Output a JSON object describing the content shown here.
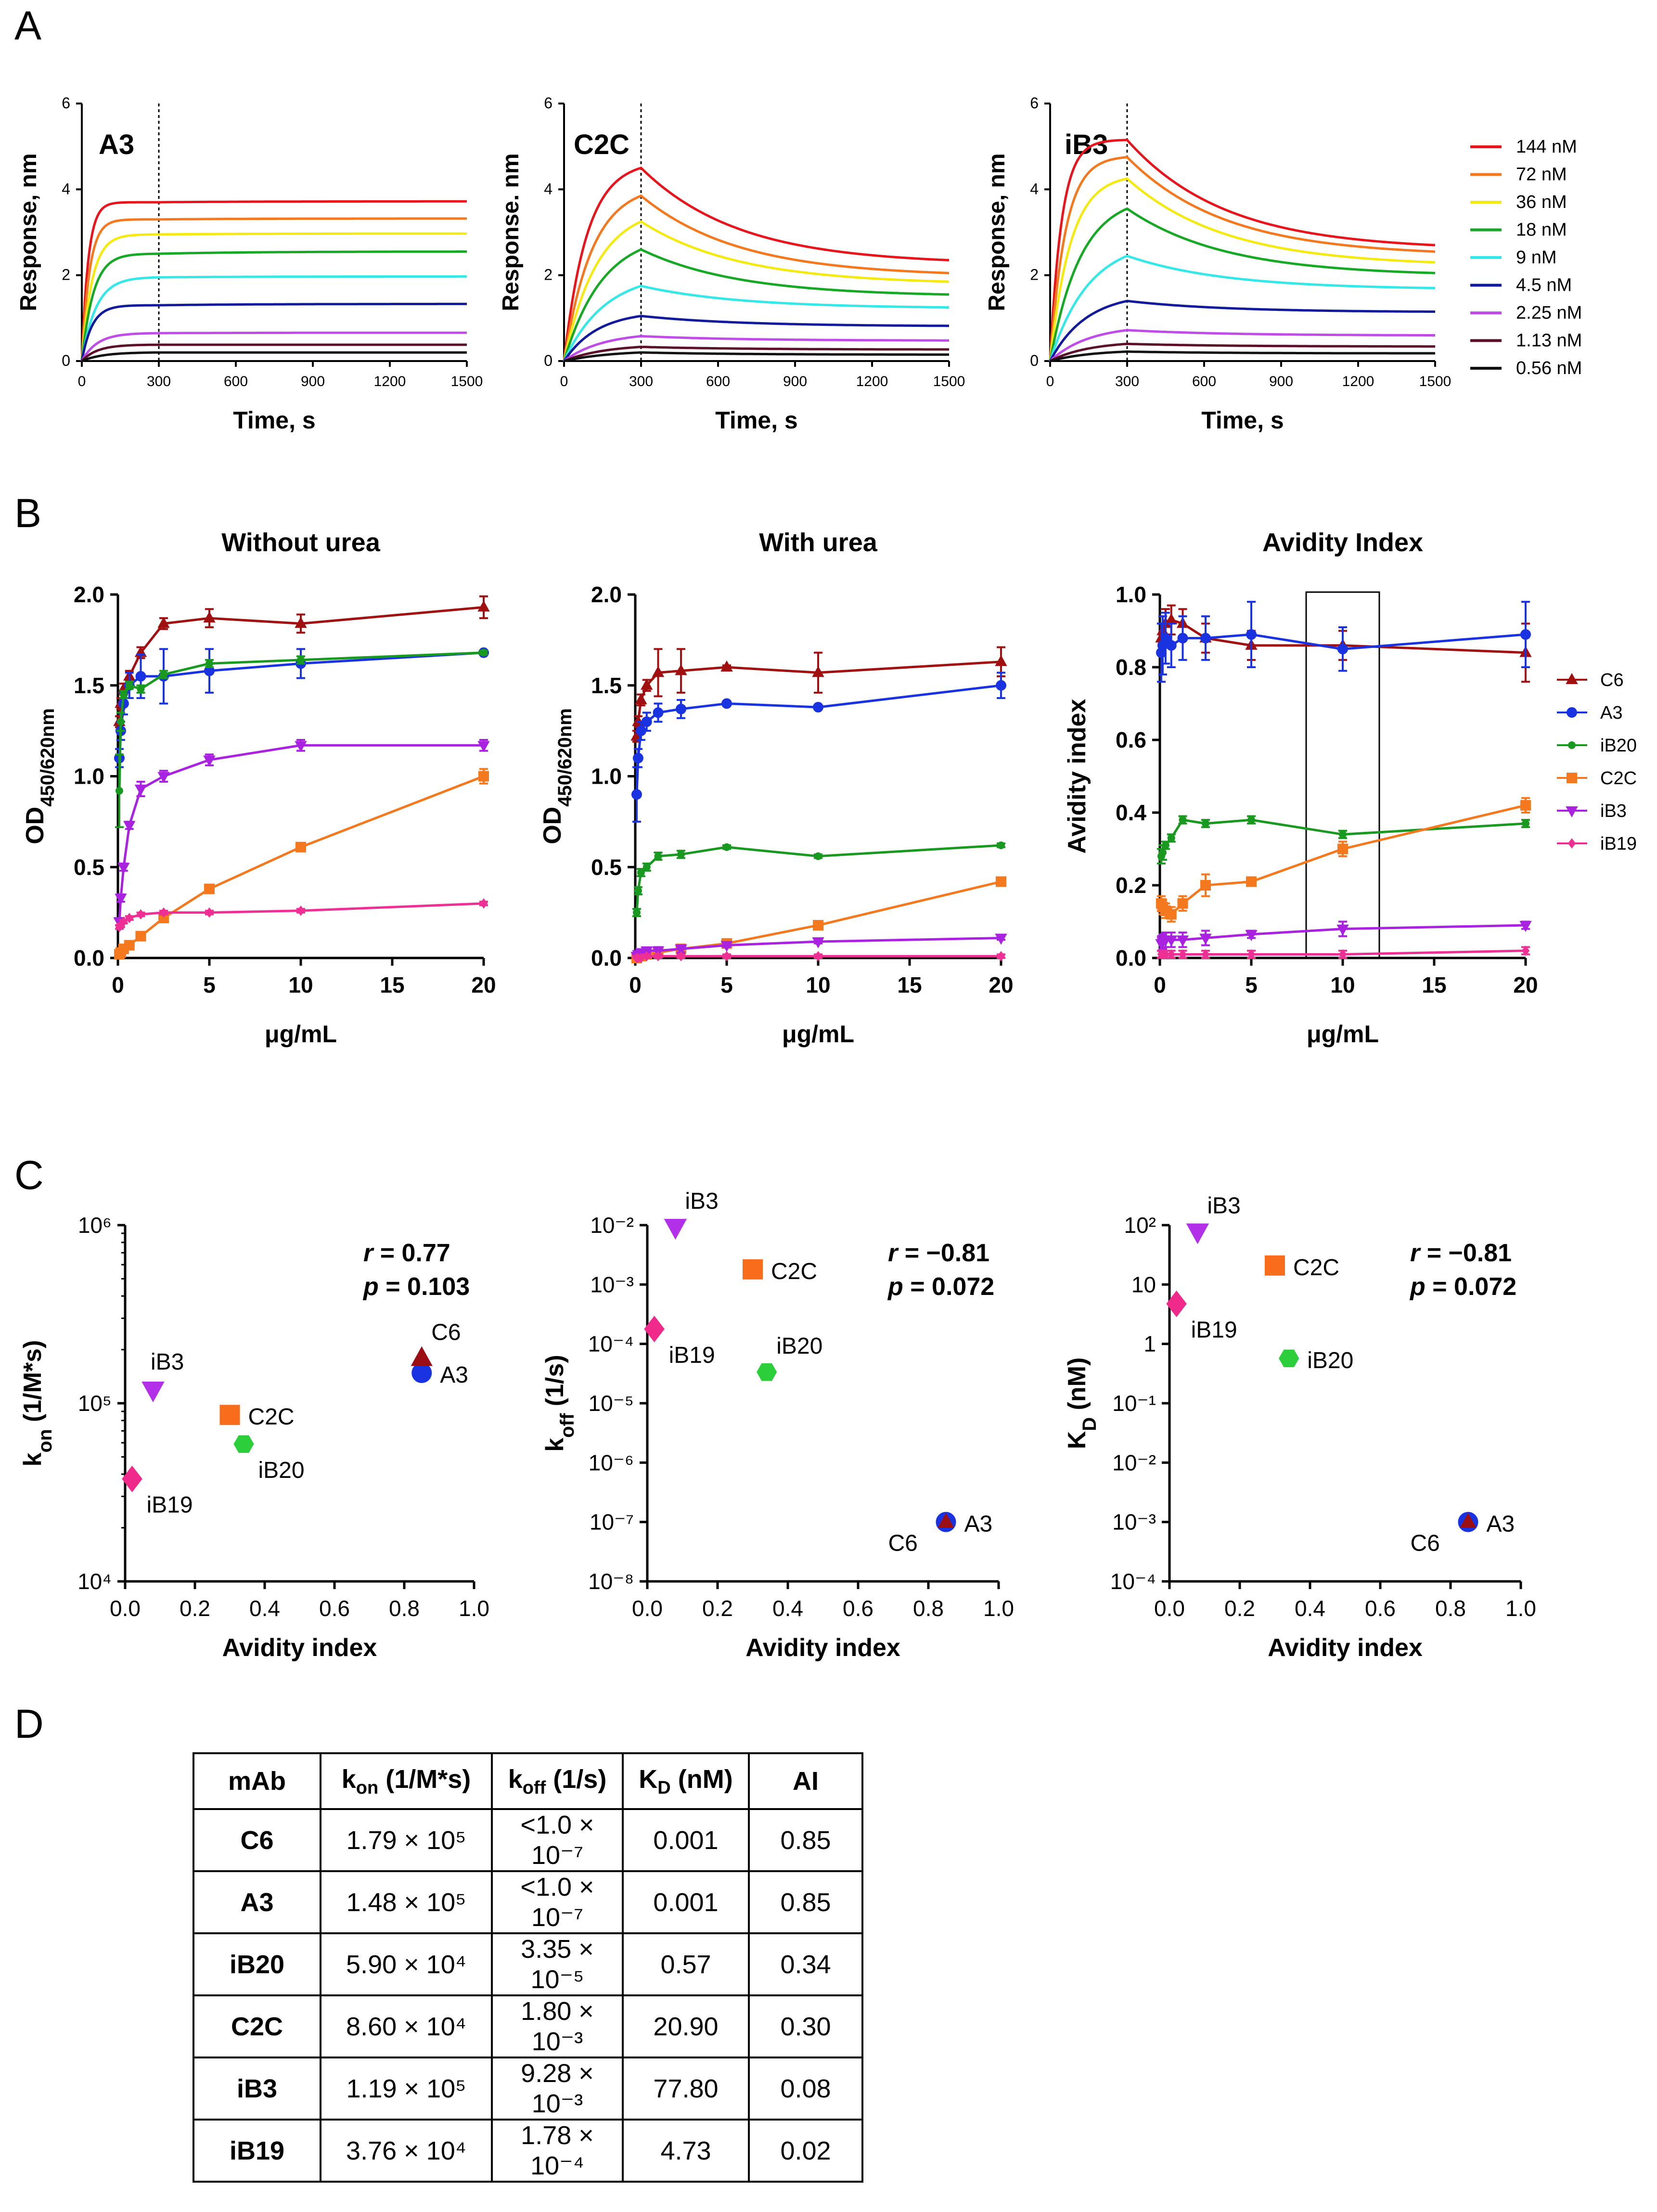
{
  "panel_letters": {
    "a": "A",
    "b": "B",
    "c": "C",
    "d": "D"
  },
  "colors": {
    "conc": [
      "#e8141c",
      "#f4781e",
      "#f4ea12",
      "#17a825",
      "#34e8e8",
      "#101a9a",
      "#c04ce8",
      "#5a0e2a",
      "#111111"
    ],
    "C6": "#a01010",
    "A3": "#1a33e0",
    "iB20": "#19991f",
    "C2C": "#f4781e",
    "iB3": "#a822e0",
    "iB19": "#ee3095",
    "scatter": {
      "C6": "#9a0e14",
      "A3": "#1a33e0",
      "iB20": "#2ccf3b",
      "C2C": "#f76d1c",
      "iB3": "#b230e8",
      "iB19": "#f02a8a"
    }
  },
  "chart_data": [
    {
      "id": "A1",
      "type": "line",
      "title": "A3",
      "xlabel": "Time, s",
      "ylabel": "Response, nm",
      "xlim": [
        0,
        1500
      ],
      "ylim": [
        0,
        6
      ],
      "xticks": [
        0,
        300,
        600,
        900,
        1200,
        1500
      ],
      "yticks": [
        0,
        2,
        4,
        6
      ],
      "dissociation_start": 300,
      "concentrations": [
        "144 nM",
        "72 nM",
        "36 nM",
        "18 nM",
        "9 nM",
        "4.5 nM",
        "2.25 nM",
        "1.13 nM",
        "0.56 nM"
      ],
      "peak": [
        3.7,
        3.3,
        2.95,
        2.5,
        1.95,
        1.3,
        0.65,
        0.38,
        0.2
      ],
      "end": [
        3.72,
        3.32,
        2.97,
        2.55,
        1.97,
        1.33,
        0.66,
        0.38,
        0.2
      ],
      "rise": [
        25,
        30,
        40,
        45,
        55,
        40,
        60,
        60,
        80
      ]
    },
    {
      "id": "A2",
      "type": "line",
      "title": "C2C",
      "xlabel": "Time, s",
      "ylabel": "Response. nm",
      "xlim": [
        0,
        1500
      ],
      "ylim": [
        0,
        6
      ],
      "xticks": [
        0,
        300,
        600,
        900,
        1200,
        1500
      ],
      "yticks": [
        0,
        2,
        4,
        6
      ],
      "dissociation_start": 300,
      "concentrations": [
        "144 nM",
        "72 nM",
        "36 nM",
        "18 nM",
        "9 nM",
        "4.5 nM",
        "2.25 nM",
        "1.13 nM",
        "0.56 nM"
      ],
      "peak": [
        4.5,
        3.85,
        3.25,
        2.6,
        1.75,
        1.05,
        0.58,
        0.33,
        0.2
      ],
      "end": [
        2.35,
        2.05,
        1.85,
        1.55,
        1.25,
        0.82,
        0.48,
        0.27,
        0.15
      ],
      "rise": [
        90,
        110,
        130,
        150,
        160,
        130,
        150,
        160,
        180
      ]
    },
    {
      "id": "A3p",
      "type": "line",
      "title": "iB3",
      "xlabel": "Time, s",
      "ylabel": "Response, nm",
      "xlim": [
        0,
        1500
      ],
      "ylim": [
        0,
        6
      ],
      "xticks": [
        0,
        300,
        600,
        900,
        1200,
        1500
      ],
      "yticks": [
        0,
        2,
        4,
        6
      ],
      "dissociation_start": 300,
      "concentrations": [
        "144 nM",
        "72 nM",
        "36 nM",
        "18 nM",
        "9 nM",
        "4.5 nM",
        "2.25 nM",
        "1.13 nM",
        "0.56 nM"
      ],
      "peak": [
        5.15,
        4.75,
        4.25,
        3.55,
        2.45,
        1.4,
        0.72,
        0.4,
        0.22
      ],
      "end": [
        2.7,
        2.55,
        2.3,
        2.05,
        1.7,
        1.15,
        0.6,
        0.34,
        0.18
      ],
      "rise": [
        45,
        60,
        80,
        120,
        150,
        140,
        150,
        150,
        160
      ]
    },
    {
      "id": "B1",
      "type": "line",
      "title": "Without urea",
      "xlabel": "μg/mL",
      "ylabel": "OD",
      "ylabel_sub": "450/620nm",
      "xlim": [
        0,
        20
      ],
      "ylim": [
        0,
        2.0
      ],
      "xticks": [
        0,
        5,
        10,
        15,
        20
      ],
      "yticks": [
        0.0,
        0.5,
        1.0,
        1.5,
        2.0
      ],
      "x": [
        0.078,
        0.156,
        0.3125,
        0.625,
        1.25,
        2.5,
        5,
        10,
        20
      ],
      "series": [
        {
          "name": "C6",
          "marker": "triangle-up",
          "values": [
            1.3,
            1.4,
            1.48,
            1.55,
            1.68,
            1.84,
            1.87,
            1.84,
            1.93
          ],
          "err": [
            0.03,
            0.03,
            0.03,
            0.03,
            0.03,
            0.03,
            0.05,
            0.05,
            0.06
          ]
        },
        {
          "name": "A3",
          "marker": "circle",
          "values": [
            1.1,
            1.25,
            1.4,
            1.5,
            1.55,
            1.55,
            1.58,
            1.62,
            1.68
          ],
          "err": [
            0.05,
            0.05,
            0.06,
            0.07,
            0.12,
            0.15,
            0.12,
            0.08,
            0.01
          ]
        },
        {
          "name": "iB20",
          "marker": "circle",
          "values": [
            0.92,
            1.3,
            1.45,
            1.5,
            1.48,
            1.56,
            1.62,
            1.64,
            1.68
          ],
          "err": [
            0.2,
            0.05,
            0.02,
            0.02,
            0.02,
            0.02,
            0.02,
            0.02,
            0.01
          ]
        },
        {
          "name": "C2C",
          "marker": "square",
          "values": [
            0.02,
            0.03,
            0.05,
            0.07,
            0.12,
            0.22,
            0.38,
            0.61,
            1.0
          ],
          "err": [
            0.01,
            0.01,
            0.01,
            0.01,
            0.01,
            0.02,
            0.02,
            0.01,
            0.04
          ]
        },
        {
          "name": "iB3",
          "marker": "triangle-down",
          "values": [
            0.2,
            0.33,
            0.5,
            0.73,
            0.93,
            1.0,
            1.09,
            1.17,
            1.17
          ],
          "err": [
            0.02,
            0.02,
            0.02,
            0.02,
            0.04,
            0.03,
            0.03,
            0.03,
            0.03
          ]
        },
        {
          "name": "iB19",
          "marker": "diamond",
          "values": [
            0.17,
            0.18,
            0.2,
            0.22,
            0.24,
            0.25,
            0.25,
            0.26,
            0.3
          ],
          "err": [
            0.01,
            0.01,
            0.01,
            0.01,
            0.01,
            0.01,
            0.01,
            0.01,
            0.01
          ]
        }
      ]
    },
    {
      "id": "B2",
      "type": "line",
      "title": "With urea",
      "xlabel": "μg/mL",
      "ylabel": "OD",
      "ylabel_sub": "450/620nm",
      "xlim": [
        0,
        20
      ],
      "ylim": [
        0,
        2.0
      ],
      "xticks": [
        0,
        5,
        10,
        15,
        20
      ],
      "yticks": [
        0.0,
        0.5,
        1.0,
        1.5,
        2.0
      ],
      "x": [
        0.078,
        0.156,
        0.3125,
        0.625,
        1.25,
        2.5,
        5,
        10,
        20
      ],
      "series": [
        {
          "name": "C6",
          "marker": "triangle-up",
          "values": [
            1.22,
            1.3,
            1.42,
            1.5,
            1.57,
            1.58,
            1.6,
            1.57,
            1.63
          ],
          "err": [
            0.03,
            0.03,
            0.03,
            0.03,
            0.13,
            0.12,
            0.01,
            0.11,
            0.08
          ]
        },
        {
          "name": "A3",
          "marker": "circle",
          "values": [
            0.9,
            1.1,
            1.25,
            1.3,
            1.35,
            1.37,
            1.4,
            1.38,
            1.5
          ],
          "err": [
            0.15,
            0.05,
            0.05,
            0.05,
            0.05,
            0.05,
            0.01,
            0.01,
            0.07
          ]
        },
        {
          "name": "iB20",
          "marker": "circle",
          "values": [
            0.25,
            0.37,
            0.47,
            0.5,
            0.56,
            0.57,
            0.61,
            0.56,
            0.62
          ],
          "err": [
            0.02,
            0.02,
            0.02,
            0.02,
            0.02,
            0.02,
            0.01,
            0.01,
            0.01
          ]
        },
        {
          "name": "C2C",
          "marker": "square",
          "values": [
            0.0,
            0.01,
            0.01,
            0.02,
            0.03,
            0.05,
            0.08,
            0.18,
            0.42
          ],
          "err": [
            0.01,
            0.01,
            0.01,
            0.01,
            0.01,
            0.01,
            0.01,
            0.01,
            0.02
          ]
        },
        {
          "name": "iB3",
          "marker": "triangle-down",
          "values": [
            0.01,
            0.02,
            0.03,
            0.04,
            0.04,
            0.05,
            0.07,
            0.09,
            0.11
          ],
          "err": [
            0.01,
            0.01,
            0.01,
            0.01,
            0.02,
            0.02,
            0.01,
            0.01,
            0.01
          ]
        },
        {
          "name": "iB19",
          "marker": "diamond",
          "values": [
            0.0,
            0.0,
            0.0,
            0.01,
            0.01,
            0.01,
            0.01,
            0.01,
            0.01
          ],
          "err": [
            0.01,
            0.01,
            0.01,
            0.01,
            0.01,
            0.01,
            0.01,
            0.01,
            0.01
          ]
        }
      ]
    },
    {
      "id": "B3",
      "type": "line",
      "title": "Avidity Index",
      "xlabel": "μg/mL",
      "ylabel": "Avidity index",
      "xlim": [
        0,
        20
      ],
      "ylim": [
        0,
        1.0
      ],
      "xticks": [
        0,
        5,
        10,
        15,
        20
      ],
      "yticks": [
        0.0,
        0.2,
        0.4,
        0.6,
        0.8,
        1.0
      ],
      "x": [
        0.078,
        0.156,
        0.3125,
        0.625,
        1.25,
        2.5,
        5,
        10,
        20
      ],
      "highlight_range": [
        8,
        12
      ],
      "legend": [
        "C6",
        "A3",
        "iB20",
        "C2C",
        "iB3",
        "iB19"
      ],
      "series": [
        {
          "name": "C6",
          "marker": "triangle-up",
          "values": [
            0.88,
            0.9,
            0.92,
            0.93,
            0.92,
            0.88,
            0.86,
            0.86,
            0.84
          ],
          "err": [
            0.04,
            0.04,
            0.04,
            0.04,
            0.04,
            0.04,
            0.04,
            0.04,
            0.08
          ]
        },
        {
          "name": "A3",
          "marker": "circle",
          "values": [
            0.84,
            0.86,
            0.88,
            0.86,
            0.88,
            0.88,
            0.89,
            0.85,
            0.89
          ],
          "err": [
            0.08,
            0.08,
            0.07,
            0.06,
            0.06,
            0.06,
            0.09,
            0.06,
            0.09
          ]
        },
        {
          "name": "iB20",
          "marker": "circle",
          "values": [
            0.28,
            0.29,
            0.31,
            0.33,
            0.38,
            0.37,
            0.38,
            0.34,
            0.37
          ],
          "err": [
            0.02,
            0.02,
            0.01,
            0.01,
            0.01,
            0.01,
            0.01,
            0.01,
            0.01
          ]
        },
        {
          "name": "C2C",
          "marker": "square",
          "values": [
            0.15,
            0.14,
            0.13,
            0.12,
            0.15,
            0.2,
            0.21,
            0.3,
            0.42
          ],
          "err": [
            0.02,
            0.02,
            0.02,
            0.02,
            0.02,
            0.03,
            0.01,
            0.02,
            0.02
          ]
        },
        {
          "name": "iB3",
          "marker": "triangle-down",
          "values": [
            0.04,
            0.045,
            0.05,
            0.05,
            0.05,
            0.055,
            0.065,
            0.08,
            0.09
          ],
          "err": [
            0.02,
            0.02,
            0.02,
            0.02,
            0.02,
            0.02,
            0.01,
            0.02,
            0.01
          ]
        },
        {
          "name": "iB19",
          "marker": "diamond",
          "values": [
            0.01,
            0.01,
            0.01,
            0.01,
            0.01,
            0.01,
            0.01,
            0.01,
            0.02
          ],
          "err": [
            0.01,
            0.01,
            0.01,
            0.01,
            0.01,
            0.01,
            0.01,
            0.01,
            0.01
          ]
        }
      ]
    },
    {
      "id": "C1",
      "type": "scatter",
      "xscale": "linear",
      "yscale": "log",
      "xlabel": "Avidity index",
      "ylabel": "k",
      "ylabel_sub": "on",
      "ylabel_rest": " (1/M*s)",
      "xlim": [
        0,
        1.0
      ],
      "ylim_exp": [
        4,
        6
      ],
      "ytick_exps": [
        4,
        5,
        6
      ],
      "xticks": [
        "0.0",
        "0.2",
        "0.4",
        "0.6",
        "0.8",
        "1.0"
      ],
      "r": "0.77",
      "p": "0.103",
      "points": [
        {
          "name": "C6",
          "x": 0.85,
          "y": 179000,
          "marker": "triangle-up",
          "label_pos": "above-right"
        },
        {
          "name": "A3",
          "x": 0.85,
          "y": 148000,
          "marker": "circle",
          "label_pos": "right"
        },
        {
          "name": "iB20",
          "x": 0.34,
          "y": 59000,
          "marker": "hexagon",
          "label_pos": "below-right"
        },
        {
          "name": "C2C",
          "x": 0.3,
          "y": 86000,
          "marker": "square",
          "label_pos": "right"
        },
        {
          "name": "iB3",
          "x": 0.08,
          "y": 119000,
          "marker": "triangle-down",
          "label_pos": "above"
        },
        {
          "name": "iB19",
          "x": 0.02,
          "y": 37600,
          "marker": "diamond",
          "label_pos": "below-right"
        }
      ]
    },
    {
      "id": "C2",
      "type": "scatter",
      "xscale": "linear",
      "yscale": "log",
      "xlabel": "Avidity index",
      "ylabel": "k",
      "ylabel_sub": "off",
      "ylabel_rest": " (1/s)",
      "xlim": [
        0,
        1.0
      ],
      "ylim_exp": [
        -8,
        -2
      ],
      "ytick_exps": [
        -8,
        -7,
        -6,
        -5,
        -4,
        -3,
        -2
      ],
      "xticks": [
        "0.0",
        "0.2",
        "0.4",
        "0.6",
        "0.8",
        "1.0"
      ],
      "r": "−0.81",
      "p": "0.072",
      "points": [
        {
          "name": "C6",
          "x": 0.85,
          "y": 1e-07,
          "marker": "triangle-up",
          "label_pos": "below-left"
        },
        {
          "name": "A3",
          "x": 0.85,
          "y": 1e-07,
          "marker": "circle",
          "label_pos": "right"
        },
        {
          "name": "iB20",
          "x": 0.34,
          "y": 3.35e-05,
          "marker": "hexagon",
          "label_pos": "above-right"
        },
        {
          "name": "C2C",
          "x": 0.3,
          "y": 0.0018,
          "marker": "square",
          "label_pos": "right"
        },
        {
          "name": "iB3",
          "x": 0.08,
          "y": 0.00928,
          "marker": "triangle-down",
          "label_pos": "above-right"
        },
        {
          "name": "iB19",
          "x": 0.02,
          "y": 0.000178,
          "marker": "diamond",
          "label_pos": "below-right"
        }
      ]
    },
    {
      "id": "C3",
      "type": "scatter",
      "xscale": "linear",
      "yscale": "log",
      "xlabel": "Avidity index",
      "ylabel": "K",
      "ylabel_sub": "D",
      "ylabel_rest": " (nM)",
      "xlim": [
        0,
        1.0
      ],
      "ylim_exp": [
        -4,
        2
      ],
      "ytick_exps": [
        -4,
        -3,
        -2,
        -1,
        0,
        1,
        2
      ],
      "ytick_labels": {
        "0": "1",
        "1": "10"
      },
      "xticks": [
        "0.0",
        "0.2",
        "0.4",
        "0.6",
        "0.8",
        "1.0"
      ],
      "r": "−0.81",
      "p": "0.072",
      "points": [
        {
          "name": "C6",
          "x": 0.85,
          "y": 0.001,
          "marker": "triangle-up",
          "label_pos": "below-left"
        },
        {
          "name": "A3",
          "x": 0.85,
          "y": 0.001,
          "marker": "circle",
          "label_pos": "right"
        },
        {
          "name": "iB20",
          "x": 0.34,
          "y": 0.57,
          "marker": "hexagon",
          "label_pos": "right"
        },
        {
          "name": "C2C",
          "x": 0.3,
          "y": 20.9,
          "marker": "square",
          "label_pos": "right"
        },
        {
          "name": "iB3",
          "x": 0.08,
          "y": 77.8,
          "marker": "triangle-down",
          "label_pos": "above-right"
        },
        {
          "name": "iB19",
          "x": 0.02,
          "y": 4.73,
          "marker": "diamond",
          "label_pos": "below-right"
        }
      ]
    }
  ],
  "table": {
    "headers": {
      "mab": "mAb",
      "kon_main": "k",
      "kon_sub": "on",
      "kon_rest": " (1/M*s)",
      "koff_main": "k",
      "koff_sub": "off",
      "koff_rest": " (1/s)",
      "kd_main": "K",
      "kd_sub": "D",
      "kd_rest": " (nM)",
      "ai": "AI"
    },
    "rows": [
      {
        "mab": "C6",
        "kon": "1.79 × 10⁵",
        "koff": "<1.0 × 10⁻⁷",
        "kd": "0.001",
        "ai": "0.85"
      },
      {
        "mab": "A3",
        "kon": "1.48 × 10⁵",
        "koff": "<1.0 × 10⁻⁷",
        "kd": "0.001",
        "ai": "0.85"
      },
      {
        "mab": "iB20",
        "kon": "5.90 × 10⁴",
        "koff": "3.35 × 10⁻⁵",
        "kd": "0.57",
        "ai": "0.34"
      },
      {
        "mab": "C2C",
        "kon": "8.60 × 10⁴",
        "koff": "1.80 × 10⁻³",
        "kd": "20.90",
        "ai": "0.30"
      },
      {
        "mab": "iB3",
        "kon": "1.19 × 10⁵",
        "koff": "9.28 × 10⁻³",
        "kd": "77.80",
        "ai": "0.08"
      },
      {
        "mab": "iB19",
        "kon": "3.76 × 10⁴",
        "koff": "1.78 × 10⁻⁴",
        "kd": "4.73",
        "ai": "0.02"
      }
    ]
  }
}
